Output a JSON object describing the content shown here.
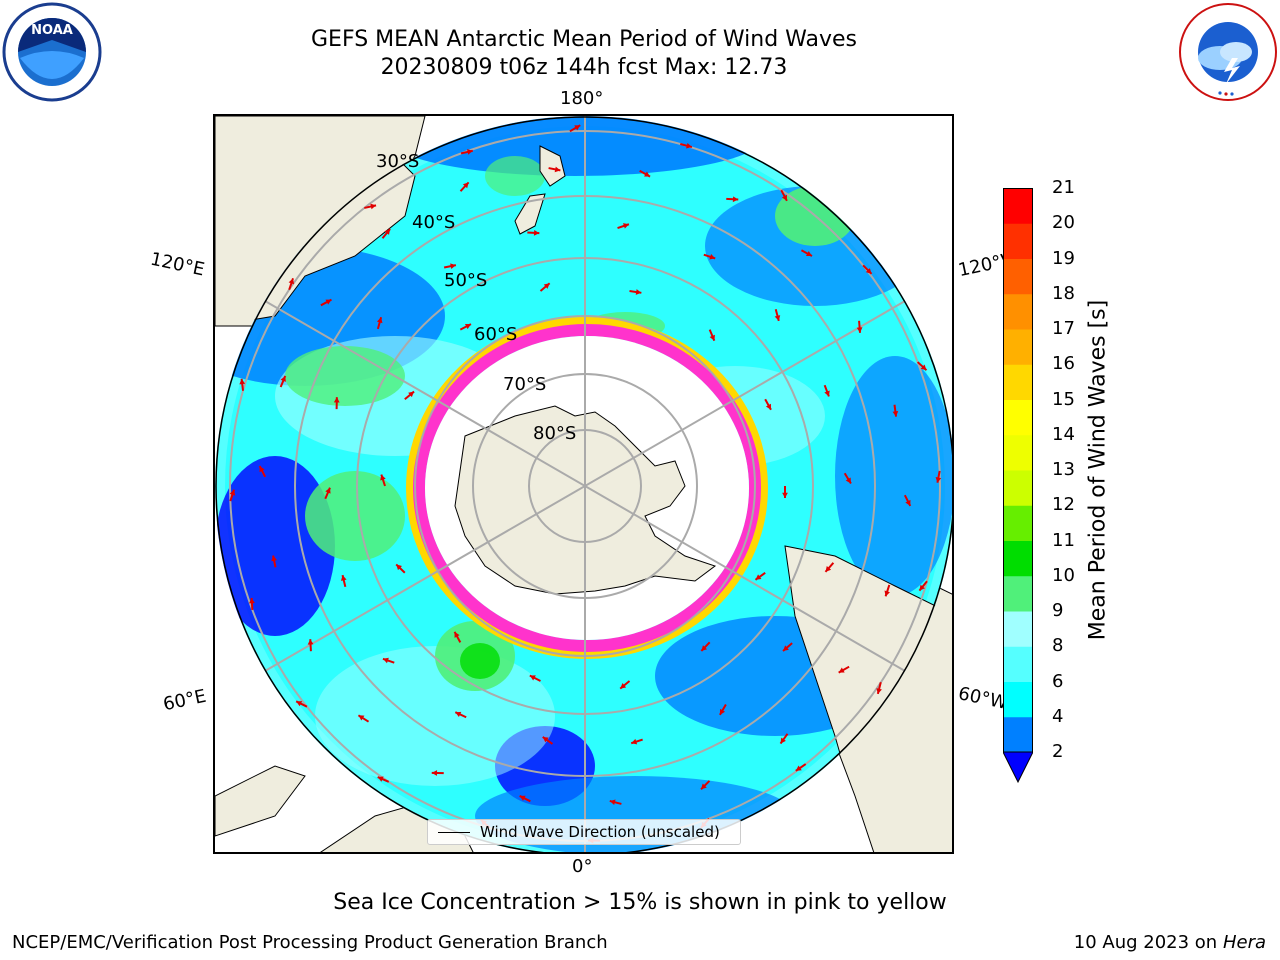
{
  "header": {
    "title_line1": "GEFS MEAN Antarctic Mean Period of Wind Waves",
    "title_line2": "20230809 t06z 144h fcst   Max: 12.73"
  },
  "logos": {
    "left": "noaa-logo",
    "left_text": "NOAA",
    "right": "nws-logo"
  },
  "map": {
    "longitude_labels": {
      "top": "180°",
      "bottom": "0°",
      "upper_left": "120°E",
      "upper_right": "120°W",
      "lower_left": "60°E",
      "lower_right": "60°W"
    },
    "latitude_labels": [
      "30°S",
      "40°S",
      "50°S",
      "60°S",
      "70°S",
      "80°S"
    ],
    "legend_label": "Wind Wave Direction (unscaled)",
    "colors": {
      "land": "#efedde",
      "ocean_low": "#0000ff",
      "ice_edge_pink": "#ff33cc",
      "arrow": "#ff0000"
    }
  },
  "colorbar": {
    "title": "Mean Period of Wind Waves [s]",
    "ticks": [
      "2",
      "4",
      "6",
      "8",
      "9",
      "10",
      "11",
      "12",
      "13",
      "14",
      "15",
      "16",
      "17",
      "18",
      "19",
      "20",
      "21"
    ],
    "colors": [
      "#0000ff",
      "#0080ff",
      "#00ffff",
      "#55ffff",
      "#a0ffff",
      "#50f07a",
      "#00dd00",
      "#66ee00",
      "#ccff00",
      "#eeff00",
      "#ffff00",
      "#ffd800",
      "#ffb000",
      "#ff9000",
      "#ff6000",
      "#ff3000",
      "#ff0000"
    ]
  },
  "note": "Sea Ice Concentration > 15% is shown in pink to yellow",
  "footer": {
    "left": "NCEP/EMC/Verification Post Processing Product Generation Branch",
    "right_date": "10 Aug 2023 on",
    "right_host": "Hera"
  }
}
